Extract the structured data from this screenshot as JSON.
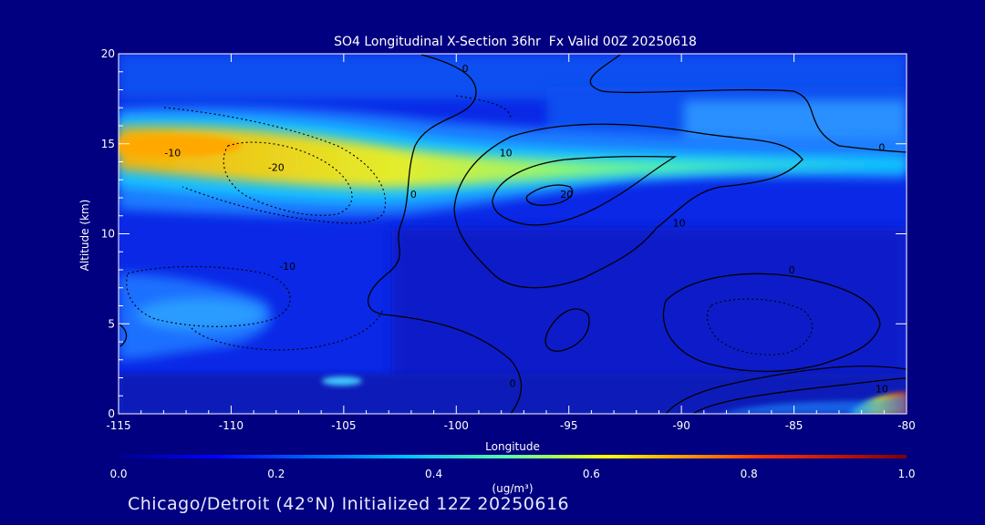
{
  "chart_data": {
    "type": "heatmap",
    "title": "SO4 Longitudinal X-Section 36hr  Fx Valid 00Z 20250618",
    "xlabel": "Longitude",
    "ylabel": "Altitude (km)",
    "xlim": [
      -115,
      -80
    ],
    "ylim": [
      0,
      20
    ],
    "x_ticks": [
      -115,
      -110,
      -105,
      -100,
      -95,
      -90,
      -85,
      -80
    ],
    "x_tick_labels": [
      "-115",
      "-110",
      "-105",
      "-100",
      "-95",
      "-90",
      "-85",
      "-80"
    ],
    "y_ticks": [
      0,
      5,
      10,
      15,
      20
    ],
    "y_tick_labels": [
      "0",
      "5",
      "10",
      "15",
      "20"
    ],
    "colorbar": {
      "label": "(ug/m³)",
      "min": 0.0,
      "max": 1.0,
      "tick_labels": [
        "0.0",
        "0.2",
        "0.4",
        "0.6",
        "0.8",
        "1.0"
      ]
    },
    "contour_labels": [
      {
        "text": "-10",
        "lon": -112.6,
        "alt": 14.3
      },
      {
        "text": "-20",
        "lon": -108.0,
        "alt": 13.5
      },
      {
        "text": "-10",
        "lon": -107.5,
        "alt": 8.0
      },
      {
        "text": "0",
        "lon": -101.9,
        "alt": 12.0
      },
      {
        "text": "0",
        "lon": -99.6,
        "alt": 19.0
      },
      {
        "text": "10",
        "lon": -97.8,
        "alt": 14.3
      },
      {
        "text": "20",
        "lon": -95.1,
        "alt": 12.0
      },
      {
        "text": "10",
        "lon": -90.1,
        "alt": 10.4
      },
      {
        "text": "0",
        "lon": -85.1,
        "alt": 7.8
      },
      {
        "text": "0",
        "lon": -81.1,
        "alt": 14.6
      },
      {
        "text": "0",
        "lon": -97.5,
        "alt": 1.5
      },
      {
        "text": "10",
        "lon": -81.1,
        "alt": 1.2
      }
    ]
  },
  "footer": {
    "location_text": "Chicago/Detroit (42°N) Initialized 12Z 20250616"
  }
}
